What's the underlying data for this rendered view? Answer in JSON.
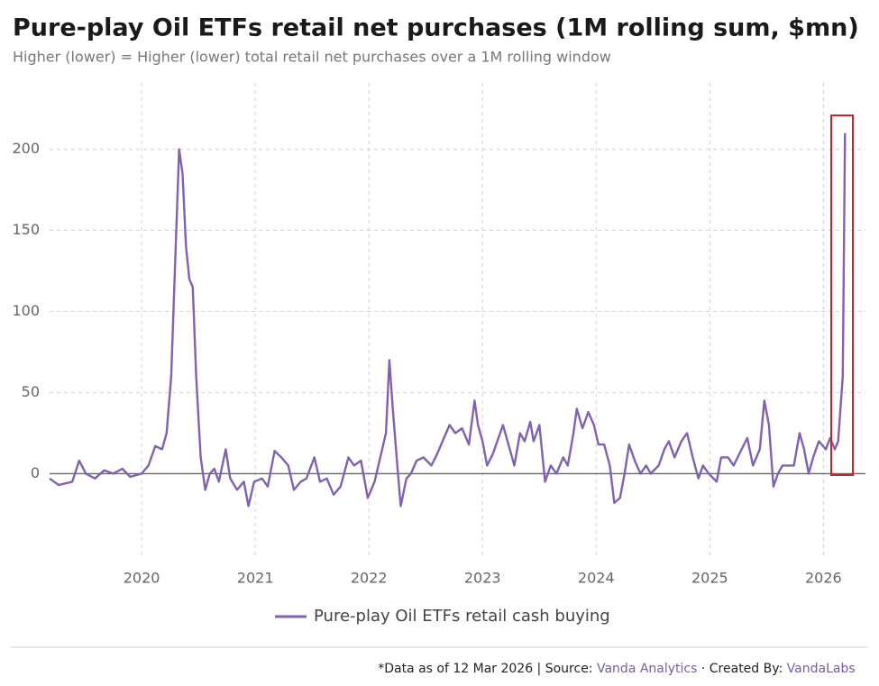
{
  "chart_data": {
    "type": "line",
    "title": "Pure-play Oil ETFs retail net purchases (1M rolling sum, $mn)",
    "subtitle": "Higher (lower) = Higher (lower) total retail net purchases over a 1M rolling window",
    "x": [
      2019.19,
      2019.27,
      2019.39,
      2019.45,
      2019.51,
      2019.59,
      2019.67,
      2019.75,
      2019.83,
      2019.9,
      2020.0,
      2020.06,
      2020.12,
      2020.18,
      2020.22,
      2020.26,
      2020.3,
      2020.33,
      2020.36,
      2020.39,
      2020.42,
      2020.45,
      2020.48,
      2020.52,
      2020.56,
      2020.6,
      2020.64,
      2020.68,
      2020.74,
      2020.78,
      2020.84,
      2020.9,
      2020.94,
      2020.99,
      2021.06,
      2021.11,
      2021.17,
      2021.23,
      2021.29,
      2021.34,
      2021.4,
      2021.45,
      2021.52,
      2021.57,
      2021.63,
      2021.69,
      2021.75,
      2021.82,
      2021.87,
      2021.93,
      2021.99,
      2022.05,
      2022.1,
      2022.15,
      2022.18,
      2022.21,
      2022.25,
      2022.28,
      2022.33,
      2022.37,
      2022.42,
      2022.48,
      2022.55,
      2022.6,
      2022.66,
      2022.71,
      2022.76,
      2022.82,
      2022.88,
      2022.93,
      2022.96,
      2023.0,
      2023.04,
      2023.09,
      2023.13,
      2023.18,
      2023.24,
      2023.28,
      2023.33,
      2023.37,
      2023.42,
      2023.45,
      2023.5,
      2023.55,
      2023.6,
      2023.65,
      2023.71,
      2023.75,
      2023.8,
      2023.83,
      2023.88,
      2023.93,
      2023.98,
      2024.02,
      2024.07,
      2024.12,
      2024.16,
      2024.21,
      2024.25,
      2024.29,
      2024.34,
      2024.39,
      2024.44,
      2024.48,
      2024.55,
      2024.6,
      2024.64,
      2024.69,
      2024.75,
      2024.8,
      2024.85,
      2024.9,
      2024.94,
      2024.99,
      2025.06,
      2025.1,
      2025.16,
      2025.21,
      2025.28,
      2025.33,
      2025.38,
      2025.44,
      2025.48,
      2025.52,
      2025.56,
      2025.6,
      2025.64,
      2025.69,
      2025.74,
      2025.79,
      2025.83,
      2025.87,
      2025.91,
      2025.96,
      2026.02,
      2026.06,
      2026.1,
      2026.13,
      2026.17,
      2026.19
    ],
    "series": [
      {
        "name": "Pure-play Oil ETFs retail cash buying",
        "color": "#8062b0",
        "values": [
          -3,
          -7,
          -5,
          8,
          0,
          -3,
          2,
          0,
          3,
          -2,
          0,
          5,
          17,
          15,
          25,
          60,
          140,
          200,
          185,
          140,
          120,
          115,
          60,
          10,
          -10,
          0,
          3,
          -5,
          15,
          -3,
          -10,
          -5,
          -20,
          -5,
          -3,
          -8,
          14,
          10,
          5,
          -10,
          -5,
          -3,
          10,
          -5,
          -3,
          -13,
          -8,
          10,
          5,
          8,
          -15,
          -5,
          10,
          25,
          70,
          40,
          5,
          -20,
          -3,
          0,
          8,
          10,
          5,
          12,
          22,
          30,
          25,
          28,
          18,
          45,
          30,
          20,
          5,
          12,
          20,
          30,
          15,
          5,
          25,
          20,
          32,
          20,
          30,
          -5,
          5,
          0,
          10,
          5,
          25,
          40,
          28,
          38,
          30,
          18,
          18,
          5,
          -18,
          -15,
          0,
          18,
          8,
          0,
          5,
          0,
          5,
          15,
          20,
          10,
          20,
          25,
          10,
          -3,
          5,
          0,
          -5,
          10,
          10,
          5,
          15,
          22,
          5,
          15,
          45,
          30,
          -8,
          0,
          5,
          5,
          5,
          25,
          15,
          0,
          10,
          20,
          15,
          22,
          15,
          20,
          60,
          210
        ]
      }
    ],
    "xlim": [
      2019.19,
      2026.37
    ],
    "xticks": [
      2020,
      2021,
      2022,
      2023,
      2024,
      2025,
      2026
    ],
    "ylim": [
      -52,
      222
    ],
    "yticks": [
      0,
      50,
      100,
      150,
      200
    ],
    "grid": true,
    "legend": "bottom",
    "footer": [
      "*Data as of 12 Mar 2026 | Source: ",
      "Vanda Analytics",
      " · Created By: ",
      "VandaLabs"
    ]
  }
}
